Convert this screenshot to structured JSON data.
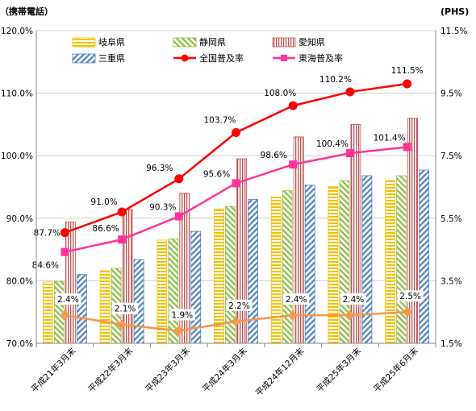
{
  "chart_data": {
    "type": "bar",
    "left_axis_label": "（携帯電話）",
    "right_axis_label": "(PHS)",
    "categories": [
      "平成21年3月末",
      "平成22年3月末",
      "平成23年3月末",
      "平成24年3月末",
      "平成24年12月末",
      "平成25年3月末",
      "平成25年6月末"
    ],
    "left_ylim": [
      70,
      120
    ],
    "left_ticks": [
      "70.0%",
      "80.0%",
      "90.0%",
      "100.0%",
      "110.0%",
      "120.0%"
    ],
    "right_ylim": [
      1.5,
      11.5
    ],
    "right_ticks": [
      "1.5%",
      "3.5%",
      "5.5%",
      "7.5%",
      "9.5%",
      "11.5%"
    ],
    "grid": true,
    "legend_position": "top",
    "bar_series": [
      {
        "name": "岐阜県",
        "values": [
          79.8,
          81.6,
          86.5,
          91.5,
          93.4,
          95.1,
          96.0
        ],
        "color": "#f5c000",
        "pattern": "horizontal"
      },
      {
        "name": "静岡県",
        "values": [
          79.9,
          82.0,
          86.7,
          91.9,
          94.4,
          96.0,
          96.8
        ],
        "color": "#92c050",
        "pattern": "diagonal-left"
      },
      {
        "name": "愛知県",
        "values": [
          89.4,
          91.4,
          94.0,
          99.5,
          103.0,
          105.0,
          106.0
        ],
        "color": "#c0504d",
        "pattern": "vertical"
      },
      {
        "name": "三重県",
        "values": [
          81.0,
          83.4,
          87.9,
          93.0,
          95.3,
          96.8,
          97.7
        ],
        "color": "#4f81bd",
        "pattern": "diagonal-right"
      }
    ],
    "line_series": [
      {
        "name": "全国普及率",
        "values": [
          87.7,
          91.0,
          96.3,
          103.7,
          108.0,
          110.2,
          111.5
        ],
        "labels": [
          "87.7%",
          "91.0%",
          "96.3%",
          "103.7%",
          "108.0%",
          "110.2%",
          "111.5%"
        ],
        "color": "#ff0000",
        "marker": "circle"
      },
      {
        "name": "東海普及率",
        "values": [
          84.6,
          86.6,
          90.3,
          95.6,
          98.6,
          100.4,
          101.4
        ],
        "labels": [
          "84.6%",
          "86.6%",
          "90.3%",
          "95.6%",
          "98.6%",
          "100.4%",
          "101.4%"
        ],
        "color": "#ff3399",
        "marker": "square"
      }
    ],
    "phs_series": {
      "values": [
        2.4,
        2.1,
        1.9,
        2.2,
        2.4,
        2.4,
        2.5
      ],
      "labels": [
        "2.4%",
        "2.1%",
        "1.9%",
        "2.2%",
        "2.4%",
        "2.4%",
        "2.5%"
      ],
      "color": "#f7964b",
      "marker": "diamond"
    }
  }
}
